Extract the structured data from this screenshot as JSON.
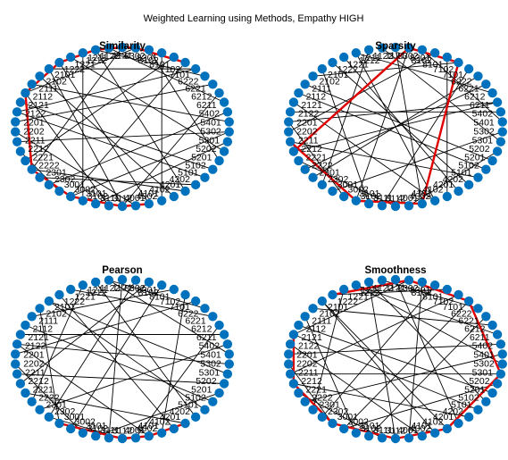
{
  "figure": {
    "title": "Weighted Learning using Methods, Empathy HIGH"
  },
  "colors": {
    "node": "#0072BD",
    "edge": "#000000",
    "highlight": "#e00000"
  },
  "node_labels": [
    "1121",
    "1122",
    "1211",
    "1212",
    "1221",
    "1222",
    "2101",
    "2102",
    "2111",
    "2112",
    "2121",
    "2122",
    "2201",
    "2202",
    "2211",
    "2212",
    "2221",
    "2222",
    "2301",
    "2302",
    "3001",
    "3002",
    "3101",
    "3102",
    "3111",
    "3112",
    "4001",
    "4002",
    "4101",
    "4102",
    "4201",
    "4202",
    "5101",
    "5102",
    "5201",
    "5202",
    "5301",
    "5302",
    "5401",
    "5402",
    "6211",
    "6212",
    "6221",
    "6222",
    "7101",
    "7102",
    "8101",
    "8102",
    "8301",
    "8302"
  ],
  "panels": [
    {
      "name": "similarity",
      "title": "Similarity",
      "edges": [
        [
          0,
          17
        ],
        [
          1,
          40
        ],
        [
          2,
          30
        ],
        [
          3,
          22
        ],
        [
          4,
          35
        ],
        [
          5,
          27
        ],
        [
          6,
          44
        ],
        [
          7,
          29
        ],
        [
          8,
          38
        ],
        [
          9,
          24
        ],
        [
          10,
          33
        ],
        [
          12,
          42
        ],
        [
          13,
          26
        ],
        [
          14,
          37
        ],
        [
          15,
          20
        ],
        [
          16,
          46
        ],
        [
          18,
          31
        ],
        [
          19,
          39
        ],
        [
          21,
          45
        ],
        [
          23,
          36
        ],
        [
          25,
          41
        ],
        [
          28,
          47
        ],
        [
          32,
          11
        ],
        [
          34,
          48
        ],
        [
          43,
          2
        ],
        [
          49,
          9
        ],
        [
          17,
          30
        ],
        [
          21,
          37
        ],
        [
          6,
          25
        ],
        [
          11,
          44
        ]
      ],
      "highlight": [
        [
          45,
          49
        ],
        [
          49,
          0
        ],
        [
          0,
          2
        ],
        [
          2,
          5
        ],
        [
          5,
          9
        ],
        [
          9,
          17
        ],
        [
          17,
          21
        ],
        [
          21,
          25
        ],
        [
          25,
          27
        ]
      ]
    },
    {
      "name": "sparsity",
      "title": "Sparsity",
      "edges": [
        [
          0,
          27
        ],
        [
          1,
          36
        ],
        [
          2,
          19
        ],
        [
          3,
          41
        ],
        [
          4,
          30
        ],
        [
          6,
          23
        ],
        [
          7,
          45
        ],
        [
          8,
          34
        ],
        [
          10,
          28
        ],
        [
          11,
          39
        ],
        [
          12,
          21
        ],
        [
          13,
          47
        ],
        [
          14,
          32
        ],
        [
          15,
          40
        ],
        [
          16,
          25
        ],
        [
          18,
          43
        ],
        [
          20,
          37
        ],
        [
          22,
          49
        ],
        [
          24,
          44
        ],
        [
          26,
          35
        ],
        [
          29,
          46
        ],
        [
          31,
          5
        ],
        [
          33,
          9
        ],
        [
          38,
          48
        ],
        [
          42,
          17
        ],
        [
          3,
          28
        ],
        [
          12,
          40
        ]
      ],
      "highlight": [
        [
          14,
          22
        ],
        [
          22,
          27
        ],
        [
          27,
          45
        ],
        [
          45,
          49
        ],
        [
          49,
          15
        ]
      ]
    },
    {
      "name": "pearson",
      "title": "Pearson",
      "edges": [
        [
          0,
          24
        ],
        [
          1,
          38
        ],
        [
          2,
          31
        ],
        [
          3,
          17
        ],
        [
          4,
          42
        ],
        [
          5,
          29
        ],
        [
          6,
          36
        ],
        [
          7,
          20
        ],
        [
          8,
          46
        ],
        [
          9,
          33
        ],
        [
          10,
          40
        ],
        [
          11,
          27
        ],
        [
          12,
          44
        ],
        [
          13,
          22
        ],
        [
          14,
          35
        ],
        [
          15,
          48
        ],
        [
          16,
          30
        ],
        [
          18,
          39
        ],
        [
          19,
          25
        ],
        [
          21,
          47
        ],
        [
          23,
          34
        ],
        [
          26,
          41
        ],
        [
          28,
          45
        ],
        [
          32,
          6
        ],
        [
          37,
          11
        ],
        [
          43,
          1
        ],
        [
          49,
          19
        ]
      ],
      "highlight": [
        [
          20,
          25
        ],
        [
          25,
          27
        ],
        [
          27,
          30
        ]
      ]
    },
    {
      "name": "smoothness",
      "title": "Smoothness",
      "edges": [
        [
          0,
          30
        ],
        [
          1,
          43
        ],
        [
          2,
          25
        ],
        [
          3,
          37
        ],
        [
          4,
          18
        ],
        [
          5,
          46
        ],
        [
          6,
          29
        ],
        [
          7,
          41
        ],
        [
          8,
          22
        ],
        [
          9,
          34
        ],
        [
          10,
          49
        ],
        [
          11,
          27
        ],
        [
          12,
          39
        ],
        [
          13,
          20
        ],
        [
          14,
          45
        ],
        [
          15,
          31
        ],
        [
          16,
          24
        ],
        [
          17,
          38
        ],
        [
          19,
          47
        ],
        [
          21,
          35
        ],
        [
          23,
          42
        ],
        [
          26,
          48
        ],
        [
          28,
          6
        ],
        [
          32,
          10
        ],
        [
          33,
          2
        ],
        [
          36,
          14
        ],
        [
          40,
          3
        ],
        [
          44,
          21
        ]
      ],
      "highlight": [
        [
          10,
          15
        ],
        [
          15,
          20
        ],
        [
          20,
          25
        ],
        [
          25,
          29
        ],
        [
          29,
          36
        ],
        [
          36,
          44
        ],
        [
          44,
          49
        ],
        [
          49,
          5
        ]
      ]
    }
  ]
}
